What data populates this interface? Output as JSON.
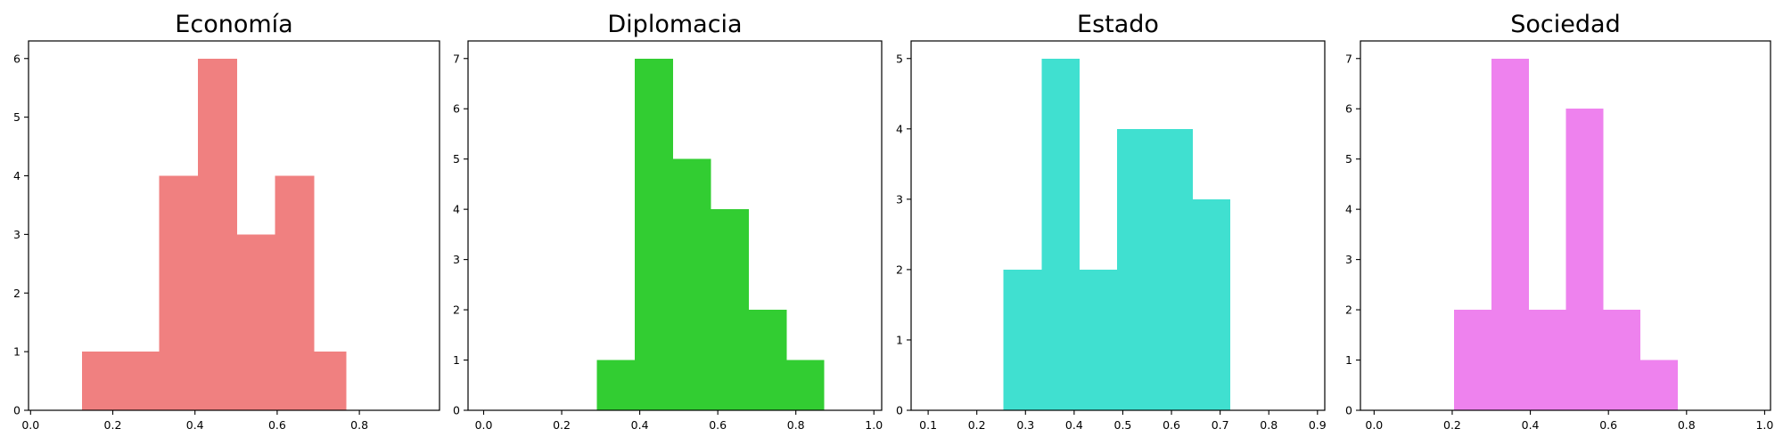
{
  "chart_data": [
    {
      "type": "histogram",
      "title": "Economía",
      "color": "#F08080",
      "xlim": [
        -0.005,
        0.995
      ],
      "ylim": [
        0,
        6.3
      ],
      "xticks": [
        0.0,
        0.2,
        0.4,
        0.6,
        0.8
      ],
      "xtick_labels": [
        "0.0",
        "0.2",
        "0.4",
        "0.6",
        "0.8"
      ],
      "yticks": [
        0,
        1,
        2,
        3,
        4,
        5,
        6
      ],
      "ytick_labels": [
        "0",
        "1",
        "2",
        "3",
        "4",
        "5",
        "6"
      ],
      "bin_edges": [
        0.125,
        0.219,
        0.313,
        0.407,
        0.501,
        0.595,
        0.689,
        0.767
      ],
      "counts": [
        1,
        1,
        4,
        6,
        3,
        4,
        1
      ]
    },
    {
      "type": "histogram",
      "title": "Diplomacia",
      "color": "#32CD32",
      "xlim": [
        -0.04,
        1.02
      ],
      "ylim": [
        0,
        7.35
      ],
      "xticks": [
        0.0,
        0.2,
        0.4,
        0.6,
        0.8,
        1.0
      ],
      "xtick_labels": [
        "0.0",
        "0.2",
        "0.4",
        "0.6",
        "0.8",
        "1.0"
      ],
      "yticks": [
        0,
        1,
        2,
        3,
        4,
        5,
        6,
        7
      ],
      "ytick_labels": [
        "0",
        "1",
        "2",
        "3",
        "4",
        "5",
        "6",
        "7"
      ],
      "bin_edges": [
        0.29,
        0.387,
        0.484,
        0.581,
        0.678,
        0.775,
        0.872
      ],
      "counts": [
        1,
        7,
        5,
        4,
        2,
        1
      ]
    },
    {
      "type": "histogram",
      "title": "Estado",
      "color": "#40E0D0",
      "xlim": [
        0.065,
        0.915
      ],
      "ylim": [
        0,
        5.25
      ],
      "xticks": [
        0.1,
        0.2,
        0.3,
        0.4,
        0.5,
        0.6,
        0.7,
        0.8,
        0.9
      ],
      "xtick_labels": [
        "0.1",
        "0.2",
        "0.3",
        "0.4",
        "0.5",
        "0.6",
        "0.7",
        "0.8",
        "0.9"
      ],
      "yticks": [
        0,
        1,
        2,
        3,
        4,
        5
      ],
      "ytick_labels": [
        "0",
        "1",
        "2",
        "3",
        "4",
        "5"
      ],
      "bin_edges": [
        0.255,
        0.333,
        0.41,
        0.488,
        0.565,
        0.643,
        0.72
      ],
      "counts": [
        2,
        5,
        2,
        4,
        4,
        3
      ]
    },
    {
      "type": "histogram",
      "title": "Sociedad",
      "color": "#EE82EE",
      "xlim": [
        -0.035,
        1.015
      ],
      "ylim": [
        0,
        7.35
      ],
      "xticks": [
        0.0,
        0.2,
        0.4,
        0.6,
        0.8,
        1.0
      ],
      "xtick_labels": [
        "0.0",
        "0.2",
        "0.4",
        "0.6",
        "0.8",
        "1.0"
      ],
      "yticks": [
        0,
        1,
        2,
        3,
        4,
        5,
        6,
        7
      ],
      "ytick_labels": [
        "0",
        "1",
        "2",
        "3",
        "4",
        "5",
        "6",
        "7"
      ],
      "bin_edges": [
        0.205,
        0.3,
        0.395,
        0.491,
        0.586,
        0.681,
        0.777
      ],
      "counts": [
        2,
        7,
        2,
        6,
        2,
        1
      ]
    }
  ]
}
